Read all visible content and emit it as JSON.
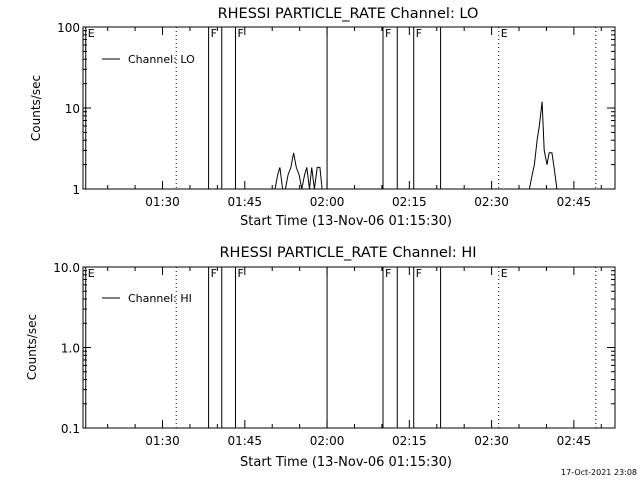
{
  "chart_data": [
    {
      "type": "line",
      "title": "RHESSI PARTICLE_RATE Channel: LO",
      "xlabel": "Start Time (13-Nov-06 01:15:30)",
      "ylabel": "Counts/sec",
      "xlim_minutes": [
        15.5,
        112.5
      ],
      "x_ticks": [
        {
          "label": "01:30",
          "minute": 30
        },
        {
          "label": "01:45",
          "minute": 45
        },
        {
          "label": "02:00",
          "minute": 60
        },
        {
          "label": "02:15",
          "minute": 75
        },
        {
          "label": "02:30",
          "minute": 90
        },
        {
          "label": "02:45",
          "minute": 105
        }
      ],
      "y_scale": "log",
      "ylim": [
        1,
        100
      ],
      "y_ticks": [
        {
          "label": "1",
          "value": 1
        },
        {
          "label": "10",
          "value": 10
        },
        {
          "label": "100",
          "value": 100
        }
      ],
      "legend": {
        "placement": "top-left",
        "entries": [
          "Channel: LO"
        ]
      },
      "events": [
        {
          "minute": 16.0,
          "label": "E",
          "style": "solid"
        },
        {
          "minute": 32.5,
          "label": "",
          "style": "dotted"
        },
        {
          "minute": 38.4,
          "label": "F",
          "style": "solid"
        },
        {
          "minute": 40.8,
          "label": "",
          "style": "solid"
        },
        {
          "minute": 43.3,
          "label": "F",
          "style": "solid"
        },
        {
          "minute": 60.0,
          "label": "",
          "style": "solid"
        },
        {
          "minute": 70.2,
          "label": "F",
          "style": "solid"
        },
        {
          "minute": 72.8,
          "label": "",
          "style": "solid"
        },
        {
          "minute": 75.8,
          "label": "F",
          "style": "solid"
        },
        {
          "minute": 80.7,
          "label": "",
          "style": "solid"
        },
        {
          "minute": 91.3,
          "label": "E",
          "style": "dotted"
        },
        {
          "minute": 109.0,
          "label": "",
          "style": "dotted"
        }
      ],
      "series": [
        {
          "name": "Channel: LO",
          "segments": [
            [
              [
                50.5,
                1.0
              ],
              [
                51.0,
                1.5
              ],
              [
                51.4,
                1.85
              ],
              [
                51.9,
                1.0
              ],
              [
                52.4,
                1.0
              ],
              [
                52.9,
                1.5
              ],
              [
                53.4,
                1.85
              ],
              [
                53.9,
                2.8
              ],
              [
                54.4,
                1.85
              ],
              [
                54.9,
                1.5
              ],
              [
                55.4,
                1.0
              ],
              [
                55.9,
                1.5
              ],
              [
                56.3,
                1.85
              ],
              [
                56.8,
                1.0
              ],
              [
                57.2,
                1.85
              ],
              [
                57.7,
                1.0
              ],
              [
                58.2,
                1.85
              ],
              [
                58.7,
                1.85
              ],
              [
                59.1,
                1.0
              ]
            ],
            [
              [
                96.9,
                1.0
              ],
              [
                97.4,
                1.5
              ],
              [
                97.8,
                2.0
              ],
              [
                98.3,
                4.0
              ],
              [
                98.7,
                6.0
              ],
              [
                99.2,
                12.0
              ],
              [
                99.6,
                3.0
              ],
              [
                100.1,
                2.0
              ],
              [
                100.5,
                2.8
              ],
              [
                101.0,
                2.8
              ],
              [
                101.4,
                1.85
              ],
              [
                101.9,
                1.0
              ]
            ]
          ]
        }
      ]
    },
    {
      "type": "line",
      "title": "RHESSI PARTICLE_RATE Channel: HI",
      "xlabel": "Start Time (13-Nov-06 01:15:30)",
      "ylabel": "Counts/sec",
      "xlim_minutes": [
        15.5,
        112.5
      ],
      "x_ticks": [
        {
          "label": "01:30",
          "minute": 30
        },
        {
          "label": "01:45",
          "minute": 45
        },
        {
          "label": "02:00",
          "minute": 60
        },
        {
          "label": "02:15",
          "minute": 75
        },
        {
          "label": "02:30",
          "minute": 90
        },
        {
          "label": "02:45",
          "minute": 105
        }
      ],
      "y_scale": "log",
      "ylim": [
        0.1,
        10
      ],
      "y_ticks": [
        {
          "label": "0.1",
          "value": 0.1
        },
        {
          "label": "1.0",
          "value": 1
        },
        {
          "label": "10.0",
          "value": 10
        }
      ],
      "legend": {
        "placement": "top-left",
        "entries": [
          "Channel: HI"
        ]
      },
      "events": [
        {
          "minute": 16.0,
          "label": "E",
          "style": "solid"
        },
        {
          "minute": 32.5,
          "label": "",
          "style": "dotted"
        },
        {
          "minute": 38.4,
          "label": "F",
          "style": "solid"
        },
        {
          "minute": 40.8,
          "label": "",
          "style": "solid"
        },
        {
          "minute": 43.3,
          "label": "F",
          "style": "solid"
        },
        {
          "minute": 60.0,
          "label": "",
          "style": "solid"
        },
        {
          "minute": 70.2,
          "label": "F",
          "style": "solid"
        },
        {
          "minute": 72.8,
          "label": "",
          "style": "solid"
        },
        {
          "minute": 75.8,
          "label": "F",
          "style": "solid"
        },
        {
          "minute": 80.7,
          "label": "",
          "style": "solid"
        },
        {
          "minute": 91.3,
          "label": "E",
          "style": "dotted"
        },
        {
          "minute": 109.0,
          "label": "",
          "style": "dotted"
        }
      ],
      "series": [
        {
          "name": "Channel: HI",
          "segments": []
        }
      ]
    }
  ],
  "footer": {
    "timestamp": "17-Oct-2021 23:08"
  }
}
